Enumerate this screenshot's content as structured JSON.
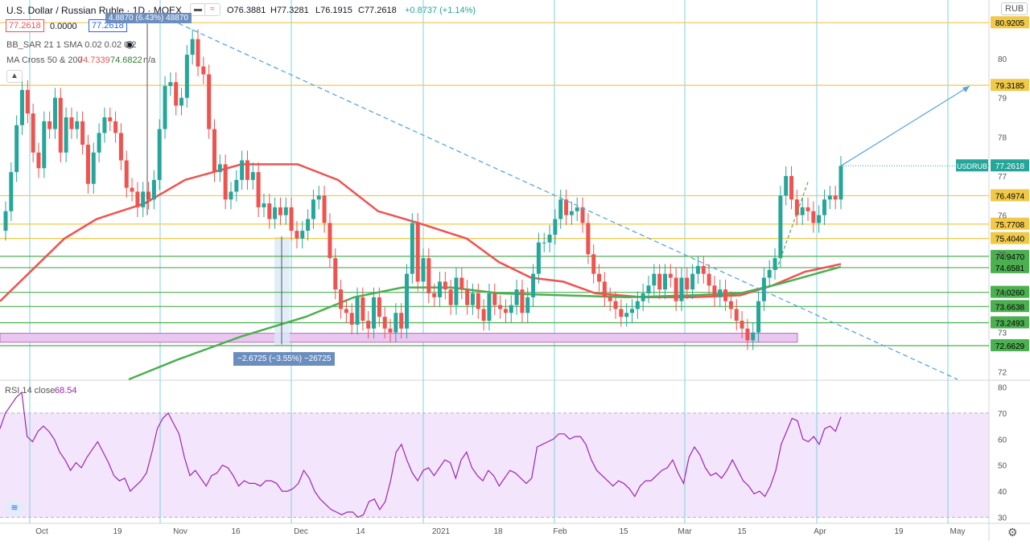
{
  "header": {
    "title": "U.S. Dollar / Russian Ruble · 1D · MOEX",
    "ohlc": {
      "o": "O76.3881",
      "h": "H77.3281",
      "l": "L76.1915",
      "c": "C77.2618",
      "chg": "+0.8737 (+1.14%)"
    },
    "price_box_1": "77.2618",
    "price_box_2": "0.0000",
    "price_box_3": "77.2618",
    "indicator_1": "BB_SAR 21 1 SMA 0.02 0.02 0.2",
    "indicator_2_name": "MA Cross 50 & 200",
    "indicator_2_val1": "74.7339",
    "indicator_2_val2": "74.6822",
    "indicator_2_val3": "n/a",
    "currency": "RUB",
    "rsi_label": "RSI 14 close",
    "rsi_value": "68.54",
    "measure_top": "4.8870 (6.43%) 48870",
    "measure_bottom": "−2.6725 (−3.55%) −26725"
  },
  "colors": {
    "up": "#26a69a",
    "down": "#ef5350",
    "ma50": "#ef5350",
    "ma200": "#4caf50",
    "level": "#f0c94a",
    "trend": "#5aa5e0",
    "rsi": "#9c27b0",
    "rsi_bg": "#f3e5fb",
    "zone": "#e9c7ef",
    "vline": "#7fd3e0"
  },
  "chart_data": {
    "type": "candlestick",
    "symbol": "USDRUB",
    "last_price": 77.2618,
    "ylim": [
      71.8,
      81.5
    ],
    "y_ticks": [
      72,
      73,
      74,
      75,
      76,
      77,
      78,
      79,
      80
    ],
    "x_ticks": [
      "Oct",
      "19",
      "Nov",
      "16",
      "Dec",
      "14",
      "2021",
      "18",
      "Feb",
      "15",
      "Mar",
      "15",
      "Apr",
      "19",
      "May"
    ],
    "levels": [
      {
        "label": "80.9205",
        "value": 80.9205,
        "color": "#f0c94a"
      },
      {
        "label": "79.3185",
        "value": 79.3185,
        "color": "#f0c94a"
      },
      {
        "label": "76.4974",
        "value": 76.4974,
        "color": "#f0c94a"
      },
      {
        "label": "75.7708",
        "value": 75.7708,
        "color": "#f0c94a"
      },
      {
        "label": "75.4040",
        "value": 75.404,
        "color": "#f0c94a"
      },
      {
        "label": "74.9470",
        "value": 74.947,
        "color": "#4caf50"
      },
      {
        "label": "74.6581",
        "value": 74.6581,
        "color": "#4caf50"
      },
      {
        "label": "74.0260",
        "value": 74.026,
        "color": "#4caf50"
      },
      {
        "label": "73.6638",
        "value": 73.6638,
        "color": "#4caf50"
      },
      {
        "label": "73.2493",
        "value": 73.2493,
        "color": "#4caf50"
      },
      {
        "label": "72.6629",
        "value": 72.6629,
        "color": "#4caf50"
      }
    ],
    "closes": [
      76.1,
      77.1,
      78.3,
      79.2,
      78.6,
      77.6,
      77.2,
      78.4,
      78.2,
      79.0,
      77.6,
      78.5,
      78.2,
      78.4,
      77.8,
      76.8,
      77.6,
      78.1,
      78.5,
      78.4,
      78.1,
      77.4,
      76.7,
      76.6,
      76.2,
      76.6,
      76.4,
      76.9,
      78.2,
      79.3,
      79.4,
      78.8,
      79.0,
      80.1,
      80.5,
      79.8,
      79.6,
      78.2,
      77.1,
      77.3,
      76.4,
      76.6,
      76.9,
      77.4,
      76.9,
      77.1,
      76.2,
      76.3,
      75.9,
      76.2,
      76.0,
      76.2,
      75.6,
      75.4,
      75.6,
      75.9,
      76.4,
      76.5,
      75.8,
      74.9,
      74.1,
      73.6,
      73.5,
      73.2,
      73.9,
      73.3,
      73.1,
      73.9,
      73.4,
      73.1,
      73.0,
      73.5,
      73.1,
      74.5,
      75.8,
      74.3,
      74.9,
      74.0,
      73.9,
      74.3,
      74.1,
      73.7,
      74.4,
      74.1,
      73.7,
      74.0,
      73.6,
      73.3,
      74.0,
      73.7,
      73.6,
      73.5,
      73.7,
      74.1,
      73.5,
      73.9,
      74.5,
      75.3,
      75.3,
      75.5,
      75.9,
      76.4,
      76.0,
      76.1,
      76.2,
      75.8,
      75.0,
      74.5,
      74.3,
      73.9,
      73.8,
      73.6,
      73.4,
      73.5,
      73.6,
      73.8,
      74.0,
      74.2,
      74.5,
      74.1,
      74.5,
      74.4,
      73.8,
      74.4,
      74.1,
      74.5,
      74.7,
      74.5,
      74.2,
      73.9,
      74.1,
      73.8,
      73.6,
      73.3,
      73.1,
      72.8,
      73.0,
      73.8,
      74.4,
      74.6,
      74.9,
      76.5,
      77.0,
      76.4,
      76.0,
      76.2,
      76.1,
      75.8,
      76.0,
      76.4,
      76.5,
      76.4,
      77.26
    ],
    "ma50_points": [
      [
        0,
        73.8
      ],
      [
        40,
        74.6
      ],
      [
        80,
        75.4
      ],
      [
        120,
        75.9
      ],
      [
        180,
        76.3
      ],
      [
        230,
        76.9
      ],
      [
        300,
        77.3
      ],
      [
        370,
        77.3
      ],
      [
        420,
        76.9
      ],
      [
        470,
        76.1
      ],
      [
        520,
        75.8
      ],
      [
        580,
        75.4
      ],
      [
        620,
        74.8
      ],
      [
        660,
        74.4
      ],
      [
        700,
        74.3
      ],
      [
        740,
        74.0
      ],
      [
        800,
        73.9
      ],
      [
        860,
        73.9
      ],
      [
        920,
        73.95
      ],
      [
        960,
        74.2
      ],
      [
        1000,
        74.55
      ],
      [
        1045,
        74.75
      ]
    ],
    "ma200_points": [
      [
        160,
        71.8
      ],
      [
        220,
        72.3
      ],
      [
        300,
        72.9
      ],
      [
        380,
        73.4
      ],
      [
        440,
        73.9
      ],
      [
        500,
        74.15
      ],
      [
        560,
        74.15
      ],
      [
        620,
        74.0
      ],
      [
        700,
        73.95
      ],
      [
        780,
        73.9
      ],
      [
        860,
        73.95
      ],
      [
        920,
        74.0
      ],
      [
        970,
        74.25
      ],
      [
        1045,
        74.68
      ]
    ],
    "rsi": {
      "ylim": [
        28,
        82
      ],
      "ticks": [
        30,
        40,
        50,
        60,
        70,
        80
      ],
      "band": [
        30,
        70
      ],
      "last": 68.54,
      "values": [
        64,
        70,
        73,
        76,
        78,
        61,
        59,
        63,
        65,
        63,
        60,
        55,
        52,
        48,
        51,
        49,
        53,
        56,
        59,
        55,
        51,
        46,
        44,
        45,
        40,
        42,
        44,
        47,
        55,
        64,
        68,
        70,
        66,
        62,
        53,
        46,
        48,
        45,
        42,
        46,
        47,
        50,
        49,
        46,
        42,
        44,
        43,
        43,
        42,
        44,
        44,
        43,
        40,
        40,
        41,
        43,
        48,
        45,
        40,
        37,
        35,
        33,
        32,
        31,
        32,
        32,
        30,
        31,
        36,
        37,
        33,
        36,
        44,
        55,
        58,
        52,
        47,
        44,
        48,
        49,
        46,
        49,
        52,
        51,
        45,
        52,
        55,
        49,
        46,
        44,
        48,
        46,
        42,
        45,
        48,
        47,
        45,
        43,
        45,
        57,
        58,
        59,
        60,
        62,
        62,
        60,
        61,
        61,
        58,
        52,
        48,
        46,
        44,
        42,
        44,
        43,
        41,
        38,
        42,
        44,
        44,
        46,
        48,
        49,
        52,
        47,
        43,
        53,
        57,
        54,
        49,
        46,
        47,
        45,
        48,
        52,
        48,
        44,
        42,
        39,
        40,
        38,
        42,
        48,
        58,
        63,
        68,
        67,
        60,
        59,
        61,
        58,
        64,
        65,
        63,
        68.54
      ]
    }
  }
}
